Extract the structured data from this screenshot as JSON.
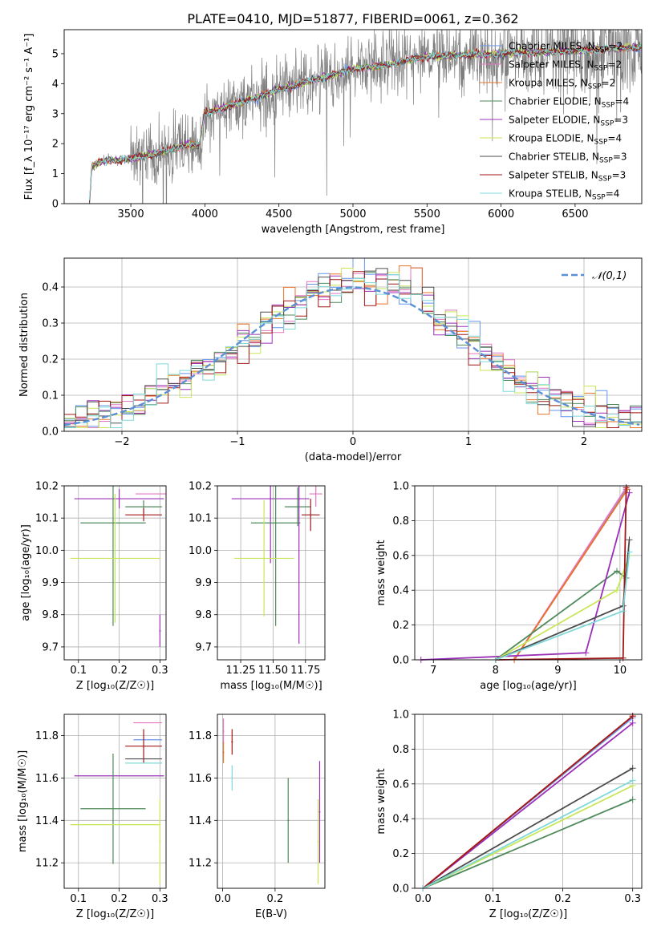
{
  "figure_title": "PLATE=0410, MJD=51877, FIBERID=0061, z=0.362",
  "colors": {
    "Chabrier MILES": "#6495ed",
    "Salpeter MILES": "#e377c2",
    "Kroupa MILES": "#e8742a",
    "Chabrier ELODIE": "#4e8a5a",
    "Salpeter ELODIE": "#9b30b8",
    "Kroupa ELODIE": "#c8e65a",
    "Chabrier STELIB": "#4d4d4d",
    "Salpeter STELIB": "#a01818",
    "Kroupa STELIB": "#7fd8d8",
    "data": "#7f7f7f",
    "normal": "#5b8fd6"
  },
  "chart_data": [
    {
      "id": "spectrum",
      "type": "line",
      "xlabel": "wavelength [Angstrom, rest frame]",
      "ylabel": "Flux [f_λ 10⁻¹⁷ erg cm⁻² s⁻¹ A⁻¹]",
      "xlim": [
        3050,
        6950
      ],
      "ylim": [
        0,
        5.8
      ],
      "xticks": [
        3500,
        4000,
        4500,
        5000,
        5500,
        6000,
        6500
      ],
      "yticks": [
        0,
        1,
        2,
        3,
        4,
        5
      ],
      "legend_position": "right",
      "legend": [
        {
          "model": "Chabrier MILES",
          "label": "Chabrier MILES, N",
          "nssp": "=2"
        },
        {
          "model": "Salpeter MILES",
          "label": "Salpeter MILES, N",
          "nssp": "=2"
        },
        {
          "model": "Kroupa MILES",
          "label": "Kroupa MILES, N",
          "nssp": "=2"
        },
        {
          "model": "Chabrier ELODIE",
          "label": "Chabrier ELODIE, N",
          "nssp": "=4"
        },
        {
          "model": "Salpeter ELODIE",
          "label": "Salpeter ELODIE, N",
          "nssp": "=3"
        },
        {
          "model": "Kroupa ELODIE",
          "label": "Kroupa ELODIE, N",
          "nssp": "=4"
        },
        {
          "model": "Chabrier STELIB",
          "label": "Chabrier STELIB, N",
          "nssp": "=3"
        },
        {
          "model": "Salpeter STELIB",
          "label": "Salpeter STELIB, N",
          "nssp": "=3"
        },
        {
          "model": "Kroupa STELIB",
          "label": "Kroupa STELIB, N",
          "nssp": "=4"
        }
      ],
      "legend_subscript": "SSP",
      "continuum_shape": {
        "wavelength": [
          3220,
          3235,
          3300,
          3500,
          3700,
          3900,
          3960,
          4000,
          4200,
          4500,
          4800,
          5000,
          5200,
          5500,
          6000,
          6500,
          6900
        ],
        "flux": [
          0.0,
          1.2,
          1.4,
          1.5,
          1.7,
          2.0,
          1.9,
          3.0,
          3.3,
          3.8,
          4.2,
          4.5,
          4.6,
          4.9,
          5.0,
          5.1,
          5.2
        ]
      }
    },
    {
      "id": "residuals",
      "type": "histogram",
      "xlabel": "(data-model)/error",
      "ylabel": "Normed distribution",
      "xlim": [
        -2.5,
        2.5
      ],
      "ylim": [
        0,
        0.48
      ],
      "xticks": [
        -2,
        -1,
        0,
        1,
        2
      ],
      "yticks": [
        0.0,
        0.1,
        0.2,
        0.3,
        0.4
      ],
      "legend_label": "𝒩(0,1)",
      "legend_position": "upper right",
      "bin_width": 0.1,
      "normal_curve": {
        "mean": 0,
        "sigma": 1
      }
    },
    {
      "id": "age_vs_Z",
      "type": "errorbar",
      "xlabel": "Z [log₁₀(Z/Z☉)]",
      "ylabel": "age  [log₁₀(age/yr)]",
      "xlim": [
        0.065,
        0.315
      ],
      "ylim": [
        9.66,
        10.2
      ],
      "xticks": [
        0.1,
        0.2,
        0.3
      ],
      "yticks": [
        9.7,
        9.8,
        9.9,
        10.0,
        10.1,
        10.2
      ],
      "points": [
        {
          "model": "Salpeter MILES",
          "x": 0.28,
          "xerr": 0.04,
          "y": 10.175,
          "yerr": 0.0
        },
        {
          "model": "Salpeter ELODIE",
          "x": 0.2,
          "xerr": 0.11,
          "y": 10.16,
          "yerr": 0.03
        },
        {
          "model": "Chabrier ELODIE",
          "x": 0.26,
          "xerr": 0.045,
          "y": 10.135,
          "yerr": 0.02
        },
        {
          "model": "Salpeter STELIB",
          "x": 0.26,
          "xerr": 0.045,
          "y": 10.11,
          "yerr": 0.02
        },
        {
          "model": "Chabrier ELODIE",
          "x": 0.185,
          "xerr": 0.08,
          "y": 10.085,
          "yerr": 0.32
        },
        {
          "model": "Kroupa ELODIE",
          "x": 0.19,
          "xerr": 0.11,
          "y": 9.975,
          "yerr": 0.2
        },
        {
          "model": "Salpeter ELODIE",
          "x": 0.3,
          "xerr": 0.0,
          "y": 9.75,
          "yerr": 0.05
        }
      ]
    },
    {
      "id": "age_vs_mass",
      "type": "errorbar",
      "xlabel": "mass [log₁₀(M/M☉)]",
      "ylabel": "",
      "xlim": [
        11.07,
        11.9
      ],
      "ylim": [
        9.66,
        10.2
      ],
      "xticks": [
        11.25,
        11.5,
        11.75
      ],
      "xticklabels": [
        "11.25",
        "11.50",
        "11.75"
      ],
      "yticks": [
        9.7,
        9.8,
        9.9,
        10.0,
        10.1,
        10.2
      ],
      "points": [
        {
          "model": "Salpeter MILES",
          "x": 11.83,
          "xerr": 0.05,
          "y": 10.175,
          "yerr": 0.04
        },
        {
          "model": "Salpeter ELODIE",
          "x": 11.48,
          "xerr": 0.3,
          "y": 10.16,
          "yerr": 0.2
        },
        {
          "model": "Chabrier ELODIE",
          "x": 11.69,
          "xerr": 0.1,
          "y": 10.135,
          "yerr": 0.06
        },
        {
          "model": "Salpeter STELIB",
          "x": 11.79,
          "xerr": 0.07,
          "y": 10.11,
          "yerr": 0.05
        },
        {
          "model": "Chabrier ELODIE",
          "x": 11.52,
          "xerr": 0.19,
          "y": 10.085,
          "yerr": 0.32
        },
        {
          "model": "Kroupa ELODIE",
          "x": 11.43,
          "xerr": 0.23,
          "y": 9.975,
          "yerr": 0.18
        },
        {
          "model": "Salpeter ELODIE",
          "x": 11.7,
          "xerr": 0.0,
          "y": 10.16,
          "yerr": 0.45
        }
      ]
    },
    {
      "id": "mass_weight_vs_age",
      "type": "line",
      "xlabel": "age  [log₁₀(age/yr)]",
      "ylabel": "mass weight",
      "xlim": [
        6.7,
        10.35
      ],
      "ylim": [
        0,
        1
      ],
      "xticks": [
        7,
        8,
        9,
        10
      ],
      "yticks": [
        0.0,
        0.2,
        0.4,
        0.6,
        0.8,
        1.0
      ],
      "series": [
        {
          "model": "Chabrier MILES",
          "x": [
            8.3,
            10.1
          ],
          "y": [
            0.0,
            0.98
          ]
        },
        {
          "model": "Salpeter MILES",
          "x": [
            8.3,
            10.1
          ],
          "y": [
            0.0,
            0.99
          ]
        },
        {
          "model": "Kroupa MILES",
          "x": [
            8.3,
            10.12
          ],
          "y": [
            0.0,
            0.98
          ]
        },
        {
          "model": "Chabrier ELODIE",
          "x": [
            8.0,
            9.95,
            10.1
          ],
          "y": [
            0.0,
            0.51,
            0.47
          ]
        },
        {
          "model": "Salpeter ELODIE",
          "x": [
            6.8,
            9.45,
            10.15
          ],
          "y": [
            0.0,
            0.04,
            0.96
          ]
        },
        {
          "model": "Kroupa ELODIE",
          "x": [
            8.0,
            9.95,
            10.15
          ],
          "y": [
            0.0,
            0.4,
            0.6
          ]
        },
        {
          "model": "Chabrier STELIB",
          "x": [
            8.0,
            10.05,
            10.15
          ],
          "y": [
            0.0,
            0.31,
            0.69
          ]
        },
        {
          "model": "Salpeter STELIB",
          "x": [
            8.0,
            10.05,
            10.1
          ],
          "y": [
            0.0,
            0.01,
            0.99
          ]
        },
        {
          "model": "Kroupa STELIB",
          "x": [
            8.0,
            10.05,
            10.15
          ],
          "y": [
            0.0,
            0.28,
            0.62
          ]
        }
      ]
    },
    {
      "id": "mass_vs_Z",
      "type": "errorbar",
      "xlabel": "Z [log₁₀(Z/Z☉)]",
      "ylabel": "mass [log₁₀(M/M☉)]",
      "xlim": [
        0.065,
        0.315
      ],
      "ylim": [
        11.08,
        11.9
      ],
      "xticks": [
        0.1,
        0.2,
        0.3
      ],
      "yticks": [
        11.2,
        11.4,
        11.6,
        11.8
      ],
      "points": [
        {
          "model": "Salpeter MILES",
          "x": 0.27,
          "xerr": 0.035,
          "y": 11.86,
          "yerr": 0.0
        },
        {
          "model": "Chabrier MILES",
          "x": 0.27,
          "xerr": 0.035,
          "y": 11.78,
          "yerr": 0.0
        },
        {
          "model": "Salpeter STELIB",
          "x": 0.26,
          "xerr": 0.045,
          "y": 11.75,
          "yerr": 0.08
        },
        {
          "model": "Chabrier STELIB",
          "x": 0.26,
          "xerr": 0.045,
          "y": 11.69,
          "yerr": 0.0
        },
        {
          "model": "Kroupa STELIB",
          "x": 0.26,
          "xerr": 0.045,
          "y": 11.67,
          "yerr": 0.0
        },
        {
          "model": "Salpeter ELODIE",
          "x": 0.2,
          "xerr": 0.11,
          "y": 11.61,
          "yerr": 0.0
        },
        {
          "model": "Chabrier ELODIE",
          "x": 0.185,
          "xerr": 0.08,
          "y": 11.455,
          "yerr": 0.26
        },
        {
          "model": "Kroupa ELODIE",
          "x": 0.19,
          "xerr": 0.11,
          "y": 11.38,
          "yerr": 0.0
        },
        {
          "model": "Kroupa ELODIE",
          "x": 0.3,
          "xerr": 0.0,
          "y": 11.3,
          "yerr": 0.2
        }
      ]
    },
    {
      "id": "mass_vs_ebv",
      "type": "errorbar",
      "xlabel": "E(B-V)",
      "ylabel": "",
      "xlim": [
        -0.02,
        0.39
      ],
      "ylim": [
        11.08,
        11.9
      ],
      "xticks": [
        0.0,
        0.2
      ],
      "yticks": [
        11.2,
        11.4,
        11.6,
        11.8
      ],
      "points": [
        {
          "model": "Salpeter MILES",
          "x": 0.003,
          "xerr": 0.0,
          "y": 11.82,
          "yerr": 0.06
        },
        {
          "model": "Kroupa MILES",
          "x": 0.003,
          "xerr": 0.0,
          "y": 11.72,
          "yerr": 0.05
        },
        {
          "model": "Salpeter STELIB",
          "x": 0.036,
          "xerr": 0.0,
          "y": 11.77,
          "yerr": 0.06
        },
        {
          "model": "Kroupa STELIB",
          "x": 0.036,
          "xerr": 0.0,
          "y": 11.6,
          "yerr": 0.06
        },
        {
          "model": "Chabrier ELODIE",
          "x": 0.25,
          "xerr": 0.0,
          "y": 11.4,
          "yerr": 0.2
        },
        {
          "model": "Salpeter ELODIE",
          "x": 0.37,
          "xerr": 0.0,
          "y": 11.44,
          "yerr": 0.24
        },
        {
          "model": "Kroupa ELODIE",
          "x": 0.364,
          "xerr": 0.0,
          "y": 11.3,
          "yerr": 0.2
        }
      ]
    },
    {
      "id": "mass_weight_vs_Z",
      "type": "line",
      "xlabel": "Z [log₁₀(Z/Z☉)]",
      "ylabel": "mass weight",
      "xlim": [
        -0.012,
        0.313
      ],
      "ylim": [
        0,
        1
      ],
      "xticks": [
        0.0,
        0.1,
        0.2,
        0.3
      ],
      "yticks": [
        0.0,
        0.2,
        0.4,
        0.6,
        0.8,
        1.0
      ],
      "series": [
        {
          "model": "Chabrier MILES",
          "x": [
            0.0,
            0.3
          ],
          "y": [
            0.0,
            0.98
          ]
        },
        {
          "model": "Salpeter MILES",
          "x": [
            0.0,
            0.3
          ],
          "y": [
            0.0,
            0.99
          ]
        },
        {
          "model": "Kroupa MILES",
          "x": [
            0.0,
            0.3
          ],
          "y": [
            0.0,
            0.99
          ]
        },
        {
          "model": "Chabrier ELODIE",
          "x": [
            0.0,
            0.3
          ],
          "y": [
            0.0,
            0.51
          ]
        },
        {
          "model": "Salpeter ELODIE",
          "x": [
            0.0,
            0.3
          ],
          "y": [
            0.0,
            0.95
          ]
        },
        {
          "model": "Kroupa ELODIE",
          "x": [
            0.0,
            0.3
          ],
          "y": [
            0.0,
            0.59
          ]
        },
        {
          "model": "Chabrier STELIB",
          "x": [
            0.0,
            0.3
          ],
          "y": [
            0.0,
            0.69
          ]
        },
        {
          "model": "Salpeter STELIB",
          "x": [
            0.0,
            0.3
          ],
          "y": [
            0.0,
            0.99
          ]
        },
        {
          "model": "Kroupa STELIB",
          "x": [
            0.0,
            0.3
          ],
          "y": [
            0.0,
            0.62
          ]
        }
      ]
    }
  ]
}
